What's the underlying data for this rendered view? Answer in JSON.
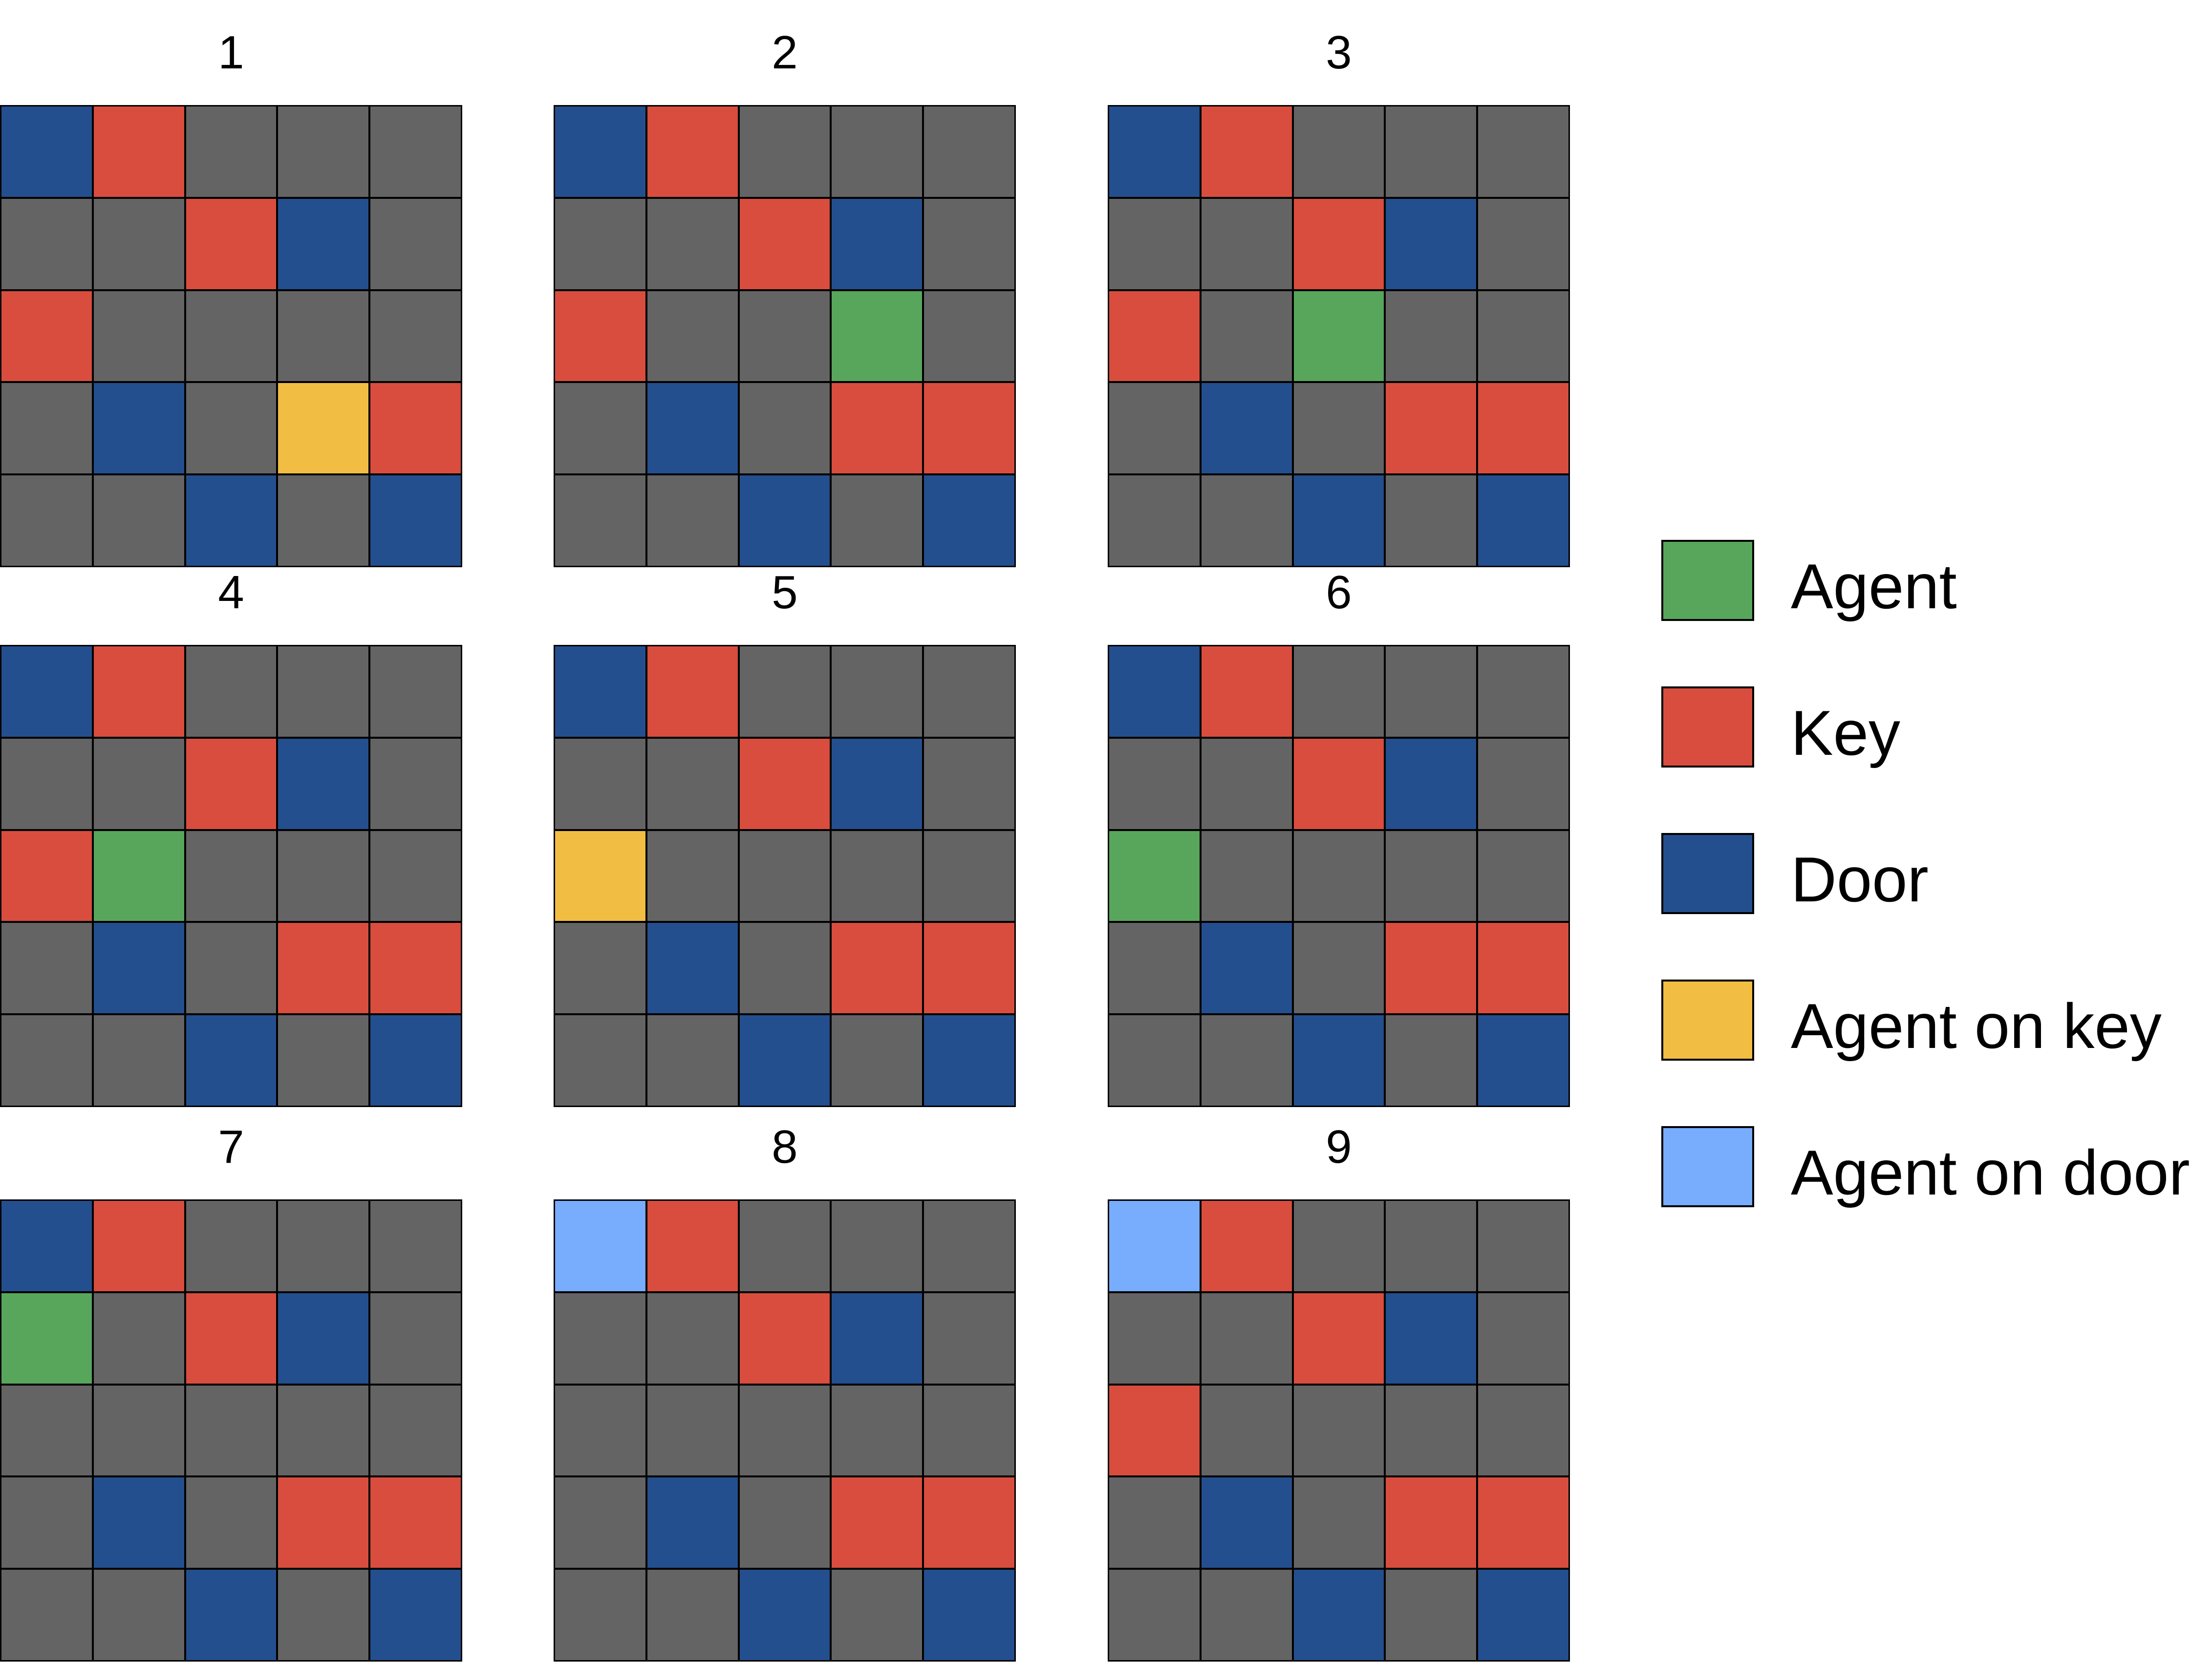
{
  "colors": {
    "empty": "#646464",
    "agent": "#58a65c",
    "key": "#d94d3e",
    "door": "#244f8e",
    "agent_on_key": "#f1bd43",
    "agent_on_door": "#78acfd"
  },
  "legend": [
    {
      "type": "agent",
      "label": "Agent"
    },
    {
      "type": "key",
      "label": "Key"
    },
    {
      "type": "door",
      "label": "Door"
    },
    {
      "type": "agent_on_key",
      "label": "Agent on key"
    },
    {
      "type": "agent_on_door",
      "label": "Agent on door"
    }
  ],
  "panels": [
    {
      "label": "1",
      "grid": [
        [
          "door",
          "key",
          "empty",
          "empty",
          "empty"
        ],
        [
          "empty",
          "empty",
          "key",
          "door",
          "empty"
        ],
        [
          "key",
          "empty",
          "empty",
          "empty",
          "empty"
        ],
        [
          "empty",
          "door",
          "empty",
          "agent_on_key",
          "key"
        ],
        [
          "empty",
          "empty",
          "door",
          "empty",
          "door"
        ]
      ]
    },
    {
      "label": "2",
      "grid": [
        [
          "door",
          "key",
          "empty",
          "empty",
          "empty"
        ],
        [
          "empty",
          "empty",
          "key",
          "door",
          "empty"
        ],
        [
          "key",
          "empty",
          "empty",
          "agent",
          "empty"
        ],
        [
          "empty",
          "door",
          "empty",
          "key",
          "key"
        ],
        [
          "empty",
          "empty",
          "door",
          "empty",
          "door"
        ]
      ]
    },
    {
      "label": "3",
      "grid": [
        [
          "door",
          "key",
          "empty",
          "empty",
          "empty"
        ],
        [
          "empty",
          "empty",
          "key",
          "door",
          "empty"
        ],
        [
          "key",
          "empty",
          "agent",
          "empty",
          "empty"
        ],
        [
          "empty",
          "door",
          "empty",
          "key",
          "key"
        ],
        [
          "empty",
          "empty",
          "door",
          "empty",
          "door"
        ]
      ]
    },
    {
      "label": "4",
      "grid": [
        [
          "door",
          "key",
          "empty",
          "empty",
          "empty"
        ],
        [
          "empty",
          "empty",
          "key",
          "door",
          "empty"
        ],
        [
          "key",
          "agent",
          "empty",
          "empty",
          "empty"
        ],
        [
          "empty",
          "door",
          "empty",
          "key",
          "key"
        ],
        [
          "empty",
          "empty",
          "door",
          "empty",
          "door"
        ]
      ]
    },
    {
      "label": "5",
      "grid": [
        [
          "door",
          "key",
          "empty",
          "empty",
          "empty"
        ],
        [
          "empty",
          "empty",
          "key",
          "door",
          "empty"
        ],
        [
          "agent_on_key",
          "empty",
          "empty",
          "empty",
          "empty"
        ],
        [
          "empty",
          "door",
          "empty",
          "key",
          "key"
        ],
        [
          "empty",
          "empty",
          "door",
          "empty",
          "door"
        ]
      ]
    },
    {
      "label": "6",
      "grid": [
        [
          "door",
          "key",
          "empty",
          "empty",
          "empty"
        ],
        [
          "empty",
          "empty",
          "key",
          "door",
          "empty"
        ],
        [
          "agent",
          "empty",
          "empty",
          "empty",
          "empty"
        ],
        [
          "empty",
          "door",
          "empty",
          "key",
          "key"
        ],
        [
          "empty",
          "empty",
          "door",
          "empty",
          "door"
        ]
      ]
    },
    {
      "label": "7",
      "grid": [
        [
          "door",
          "key",
          "empty",
          "empty",
          "empty"
        ],
        [
          "agent",
          "empty",
          "key",
          "door",
          "empty"
        ],
        [
          "empty",
          "empty",
          "empty",
          "empty",
          "empty"
        ],
        [
          "empty",
          "door",
          "empty",
          "key",
          "key"
        ],
        [
          "empty",
          "empty",
          "door",
          "empty",
          "door"
        ]
      ]
    },
    {
      "label": "8",
      "grid": [
        [
          "agent_on_door",
          "key",
          "empty",
          "empty",
          "empty"
        ],
        [
          "empty",
          "empty",
          "key",
          "door",
          "empty"
        ],
        [
          "empty",
          "empty",
          "empty",
          "empty",
          "empty"
        ],
        [
          "empty",
          "door",
          "empty",
          "key",
          "key"
        ],
        [
          "empty",
          "empty",
          "door",
          "empty",
          "door"
        ]
      ]
    },
    {
      "label": "9",
      "grid": [
        [
          "agent_on_door",
          "key",
          "empty",
          "empty",
          "empty"
        ],
        [
          "empty",
          "empty",
          "key",
          "door",
          "empty"
        ],
        [
          "key",
          "empty",
          "empty",
          "empty",
          "empty"
        ],
        [
          "empty",
          "door",
          "empty",
          "key",
          "key"
        ],
        [
          "empty",
          "empty",
          "door",
          "empty",
          "door"
        ]
      ]
    }
  ]
}
